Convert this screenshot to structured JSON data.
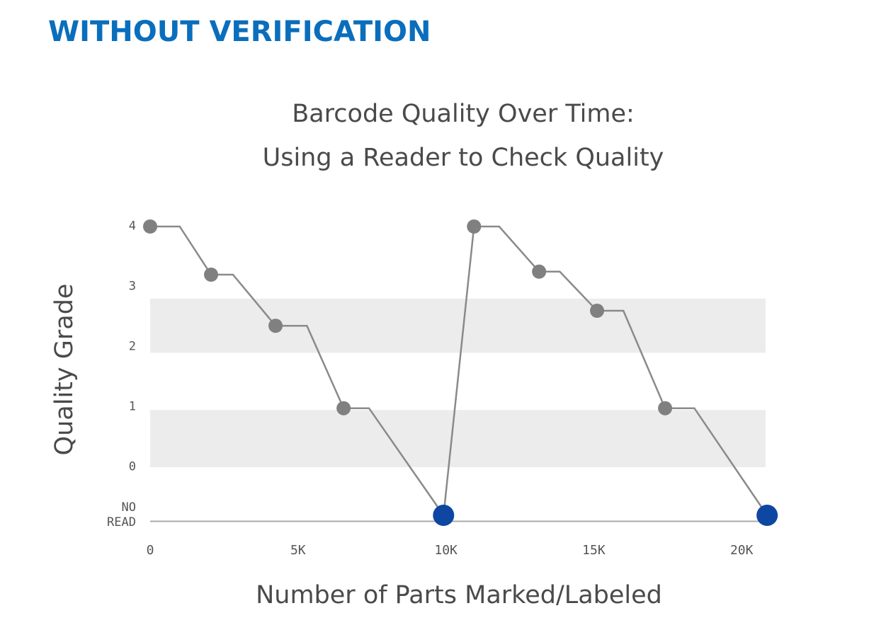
{
  "header": "WITHOUT VERIFICATION",
  "chart_data": {
    "type": "line",
    "title": [
      "Barcode Quality Over Time:",
      "Using a Reader to Check Quality"
    ],
    "x_label": "Number of Parts Marked/Labeled",
    "y_label": "Quality Grade",
    "xlim": [
      0,
      21000
    ],
    "xticks": [
      0,
      {
        "value": 5000,
        "label": "5K"
      },
      {
        "value": 10000,
        "label": "10K"
      },
      {
        "value": 15000,
        "label": "15K"
      },
      {
        "value": 20000,
        "label": "20K"
      }
    ],
    "ylim": [
      -0.9,
      4.1
    ],
    "yticks": [
      {
        "value": -0.8,
        "label": "NO READ"
      },
      0,
      1,
      2,
      3,
      4
    ],
    "bands": [
      {
        "from": 0,
        "to": 0.95,
        "color": "#ececec"
      },
      {
        "from": 1.9,
        "to": 2.8,
        "color": "#ececec"
      }
    ],
    "series": [
      {
        "color": "#8a8a8a",
        "line": true,
        "marker": false,
        "x": [
          0,
          1000,
          2060,
          2800,
          4240,
          5300,
          6540,
          7400,
          9920,
          10950,
          11800,
          13150,
          13850,
          15110,
          16000,
          17410,
          18400,
          20860
        ],
        "values": [
          4,
          4,
          3.2,
          3.2,
          2.35,
          2.35,
          0.98,
          0.98,
          -0.8,
          4,
          4,
          3.25,
          3.25,
          2.6,
          2.6,
          0.98,
          0.98,
          -0.8
        ]
      },
      {
        "color": "#808080",
        "line": false,
        "marker": true,
        "x": [
          0,
          2060,
          4240,
          6540,
          10950,
          13150,
          15110,
          17410
        ],
        "values": [
          4,
          3.2,
          2.35,
          0.98,
          4,
          3.25,
          2.6,
          0.98
        ]
      },
      {
        "color": "#0d47a1",
        "line": false,
        "marker": true,
        "x": [
          9920,
          20860
        ],
        "values": [
          -0.8,
          -0.8
        ]
      }
    ]
  }
}
